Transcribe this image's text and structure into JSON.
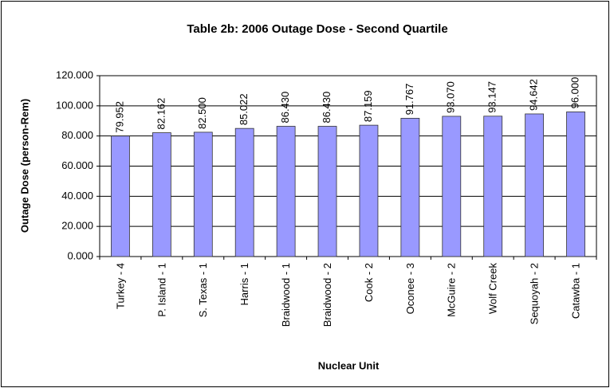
{
  "chart_data": {
    "type": "bar",
    "title": "Table 2b: 2006 Outage Dose - Second Quartile",
    "x_label": "Nuclear Unit",
    "y_label": "Outage Dose (person-Rem)",
    "categories": [
      "Turkey - 4",
      "P. Island - 1",
      "S. Texas - 1",
      "Harris - 1",
      "Braidwood - 1",
      "Braidwood - 2",
      "Cook - 2",
      "Oconee - 3",
      "McGuire - 2",
      "Wolf Creek",
      "Sequoyah - 2",
      "Catawba - 1"
    ],
    "values": [
      79.952,
      82.162,
      82.5,
      85.022,
      86.43,
      86.43,
      87.159,
      91.767,
      93.07,
      93.147,
      94.642,
      96.0
    ],
    "value_labels": [
      "79.952",
      "82.162",
      "82.500",
      "85.022",
      "86.430",
      "86.430",
      "87.159",
      "91.767",
      "93.070",
      "93.147",
      "94.642",
      "96.000"
    ],
    "color": "#9999ff",
    "ylim": [
      0,
      120
    ],
    "yticks": [
      {
        "value": 0,
        "label": "0.000"
      },
      {
        "value": 20,
        "label": "20.000"
      },
      {
        "value": 40,
        "label": "40.000"
      },
      {
        "value": 60,
        "label": "60.000"
      },
      {
        "value": 80,
        "label": "80.000"
      },
      {
        "value": 100,
        "label": "100.000"
      },
      {
        "value": 120,
        "label": "120.000"
      }
    ],
    "grid": true
  }
}
